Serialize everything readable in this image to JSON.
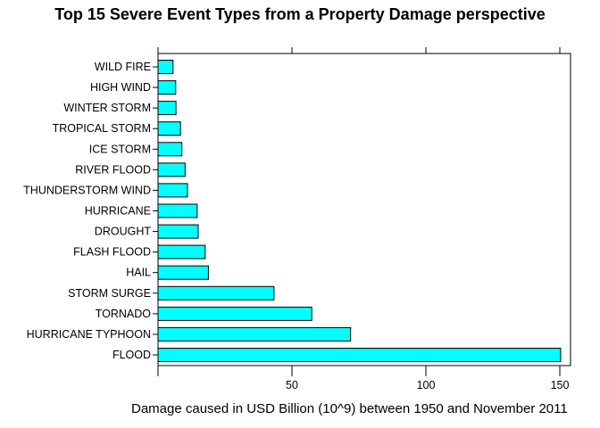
{
  "chart_data": {
    "type": "bar",
    "orientation": "horizontal",
    "title": "Top 15 Severe Event Types from a Property Damage perspective",
    "xlabel": "Damage caused in USD Billion (10^9) between 1950 and November 2011",
    "ylabel": "",
    "xlim": [
      0,
      154
    ],
    "x_ticks": [
      50,
      100,
      150
    ],
    "categories": [
      "FLOOD",
      "HURRICANE TYPHOON",
      "TORNADO",
      "STORM SURGE",
      "HAIL",
      "FLASH FLOOD",
      "DROUGHT",
      "HURRICANE",
      "THUNDERSTORM WIND",
      "RIVER FLOOD",
      "ICE STORM",
      "TROPICAL STORM",
      "WINTER STORM",
      "HIGH WIND",
      "WILD FIRE"
    ],
    "values": [
      150.3,
      71.9,
      57.4,
      43.3,
      18.8,
      17.6,
      15.0,
      14.6,
      11.0,
      10.1,
      8.9,
      8.4,
      6.7,
      6.6,
      5.6
    ],
    "bar_color": "#00FFFF",
    "bar_stroke": "#000000",
    "grid": false
  }
}
